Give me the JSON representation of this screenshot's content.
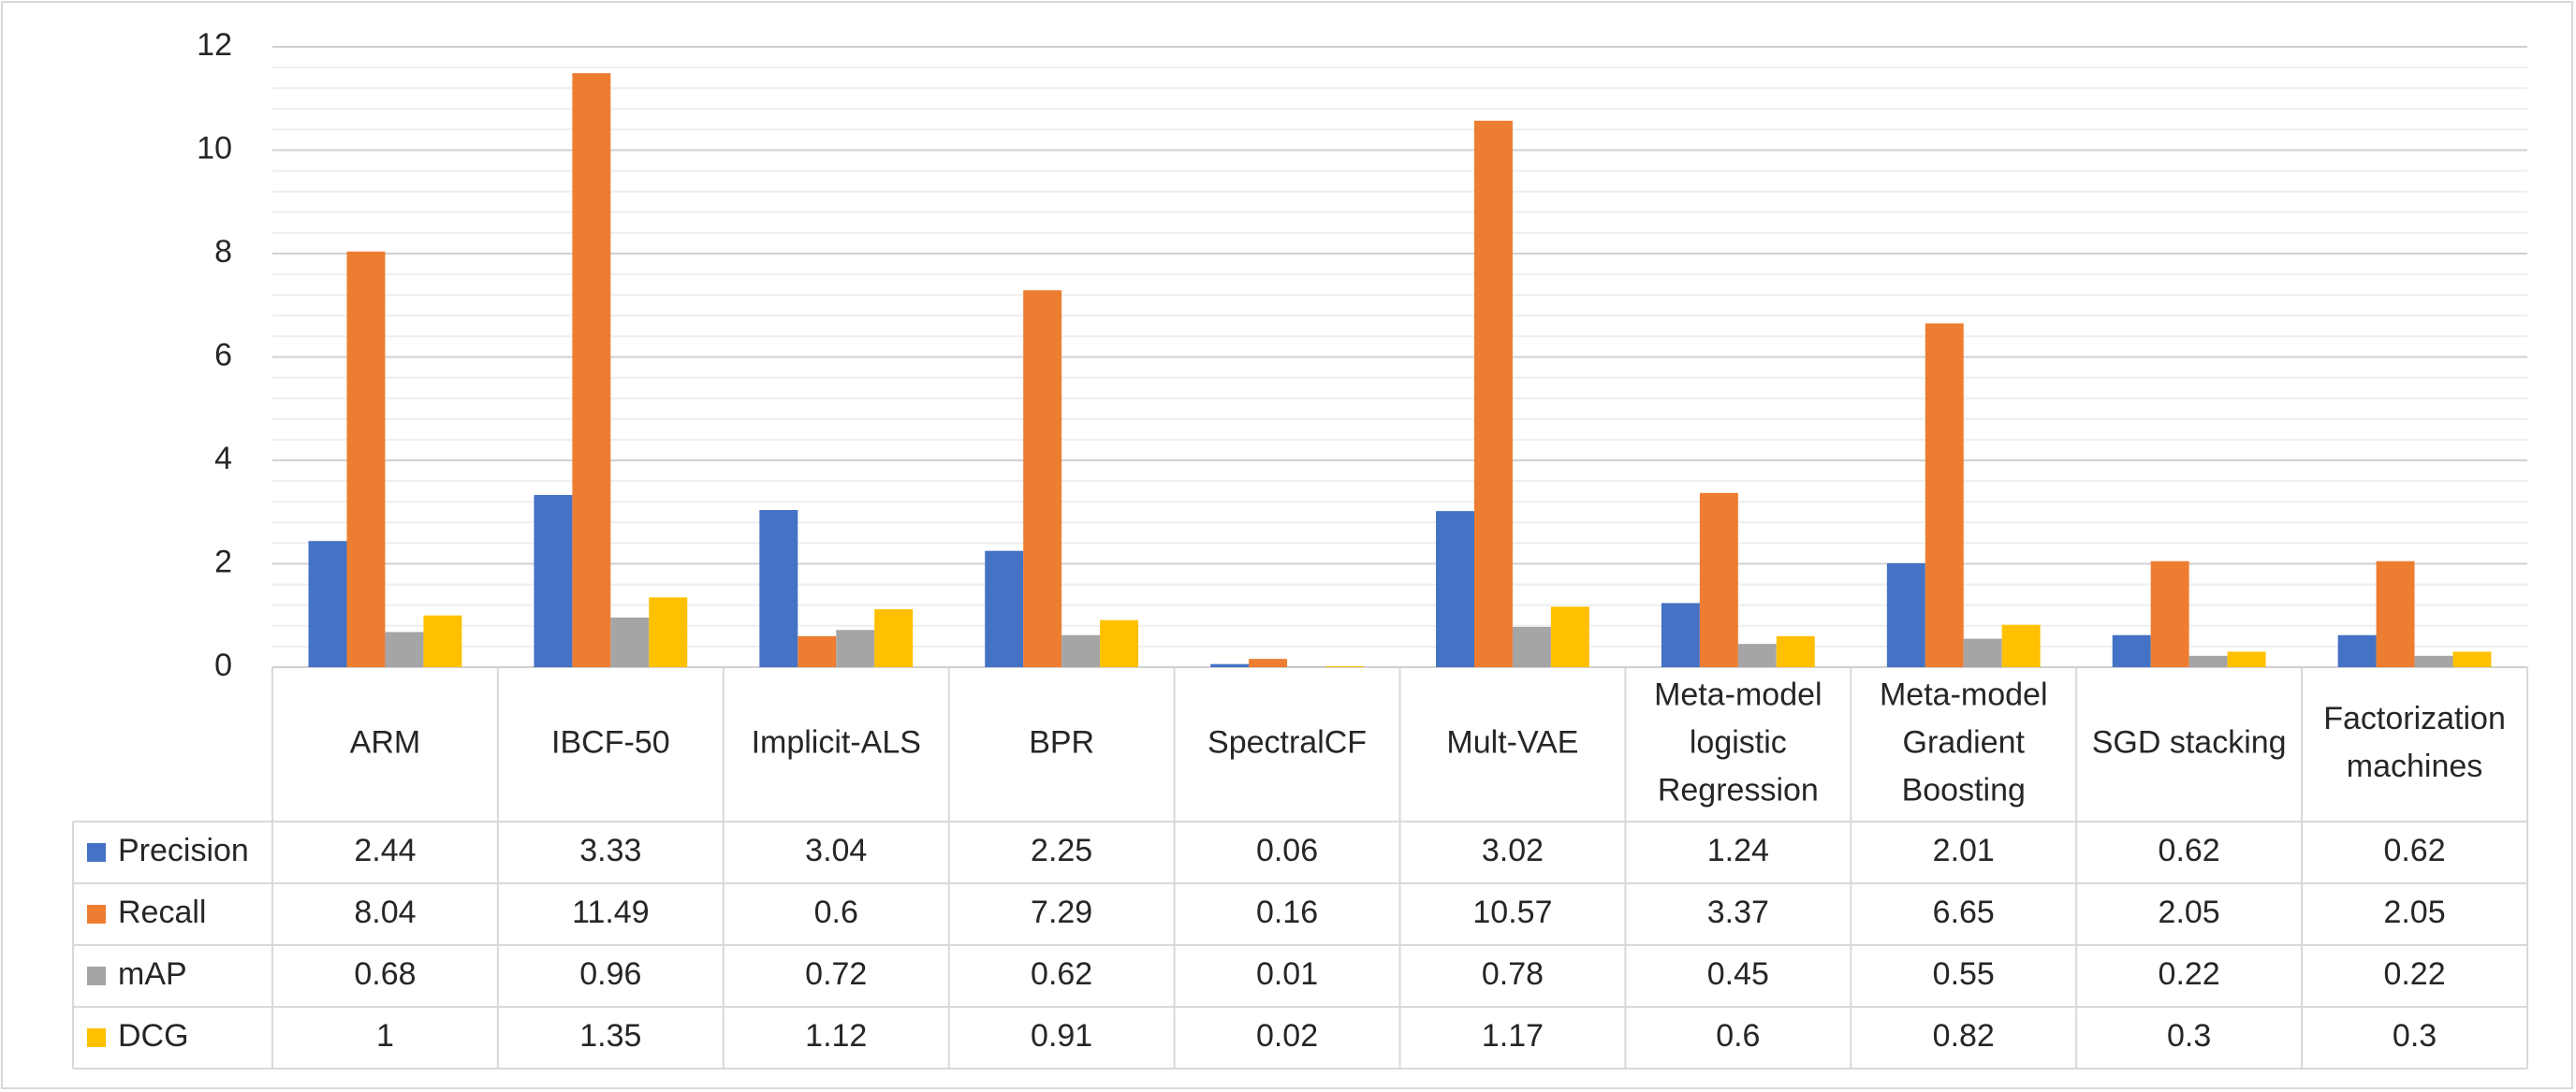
{
  "chart_data": {
    "type": "bar",
    "title": "",
    "xlabel": "",
    "ylabel": "",
    "ylim": [
      0,
      12
    ],
    "yticks": [
      "0",
      "2",
      "4",
      "6",
      "8",
      "10",
      "12"
    ],
    "grid": true,
    "legend": "data-table-left",
    "categories": [
      [
        "ARM"
      ],
      [
        "IBCF-50"
      ],
      [
        "Implicit-ALS"
      ],
      [
        "BPR"
      ],
      [
        "SpectralCF"
      ],
      [
        "Mult-VAE"
      ],
      [
        "Meta-model",
        "logistic",
        "Regression"
      ],
      [
        "Meta-model",
        "Gradient",
        "Boosting"
      ],
      [
        "SGD stacking"
      ],
      [
        "Factorization",
        "machines"
      ]
    ],
    "series": [
      {
        "name": "Precision",
        "color": "#4472c4",
        "values": [
          2.44,
          3.33,
          3.04,
          2.25,
          0.06,
          3.02,
          1.24,
          2.01,
          0.62,
          0.62
        ],
        "labels": [
          "2.44",
          "3.33",
          "3.04",
          "2.25",
          "0.06",
          "3.02",
          "1.24",
          "2.01",
          "0.62",
          "0.62"
        ]
      },
      {
        "name": "Recall",
        "color": "#ed7d31",
        "values": [
          8.04,
          11.49,
          0.6,
          7.29,
          0.16,
          10.57,
          3.37,
          6.65,
          2.05,
          2.05
        ],
        "labels": [
          "8.04",
          "11.49",
          "0.6",
          "7.29",
          "0.16",
          "10.57",
          "3.37",
          "6.65",
          "2.05",
          "2.05"
        ]
      },
      {
        "name": "mAP",
        "color": "#a5a5a5",
        "values": [
          0.68,
          0.96,
          0.72,
          0.62,
          0.01,
          0.78,
          0.45,
          0.55,
          0.22,
          0.22
        ],
        "labels": [
          "0.68",
          "0.96",
          "0.72",
          "0.62",
          "0.01",
          "0.78",
          "0.45",
          "0.55",
          "0.22",
          "0.22"
        ]
      },
      {
        "name": "DCG",
        "color": "#ffc000",
        "values": [
          1,
          1.35,
          1.12,
          0.91,
          0.02,
          1.17,
          0.6,
          0.82,
          0.3,
          0.3
        ],
        "labels": [
          "1",
          "1.35",
          "1.12",
          "0.91",
          "0.02",
          "1.17",
          "0.6",
          "0.82",
          "0.3",
          "0.3"
        ]
      }
    ]
  }
}
